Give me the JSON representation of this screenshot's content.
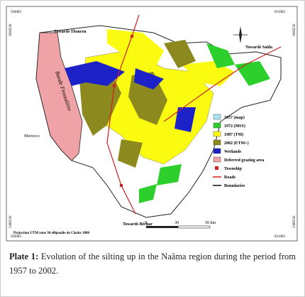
{
  "figure": {
    "coordinates": {
      "top_left": "594083",
      "top_right": "831083",
      "left_top": "3826530",
      "right_top": "3826530",
      "left_bottom": "3380530",
      "right_bottom": "3380530",
      "bottom_left": "594083",
      "bottom_right": "831083"
    },
    "labels": {
      "north": "Towards Tlemcen",
      "east": "Towards Saïda",
      "band": "Bande Frontalière",
      "west": "Morocco",
      "south": "Towards Béchar"
    },
    "scale": [
      "0",
      "30",
      "50 km"
    ],
    "projection": "Projection UTM zone 30 ellipsoïde de Clarke 1880",
    "legend": [
      {
        "name": "1957 (map)",
        "color": "#a6e6f2",
        "kind": "box"
      },
      {
        "name": "1972 (MSS)",
        "color": "#2ccf2c",
        "kind": "box"
      },
      {
        "name": "1987 (TM)",
        "color": "#fbfb12",
        "kind": "box"
      },
      {
        "name": "2002 (ETM+)",
        "color": "#8c8a1e",
        "kind": "box"
      },
      {
        "name": "Wetlands",
        "color": "#1c22c8",
        "kind": "box"
      },
      {
        "name": "Deferred grazing area",
        "color": "#f0a3a6",
        "kind": "box"
      },
      {
        "name": "Township",
        "color": "#d02020",
        "kind": "square"
      },
      {
        "name": "Roads",
        "color": "#d02020",
        "kind": "line"
      },
      {
        "name": "Boundaries",
        "color": "#111111",
        "kind": "line"
      }
    ]
  },
  "caption": {
    "label": "Plate 1:",
    "text": "Evolution of the silting up in the Naâma region during the period from 1957 to 2002."
  }
}
